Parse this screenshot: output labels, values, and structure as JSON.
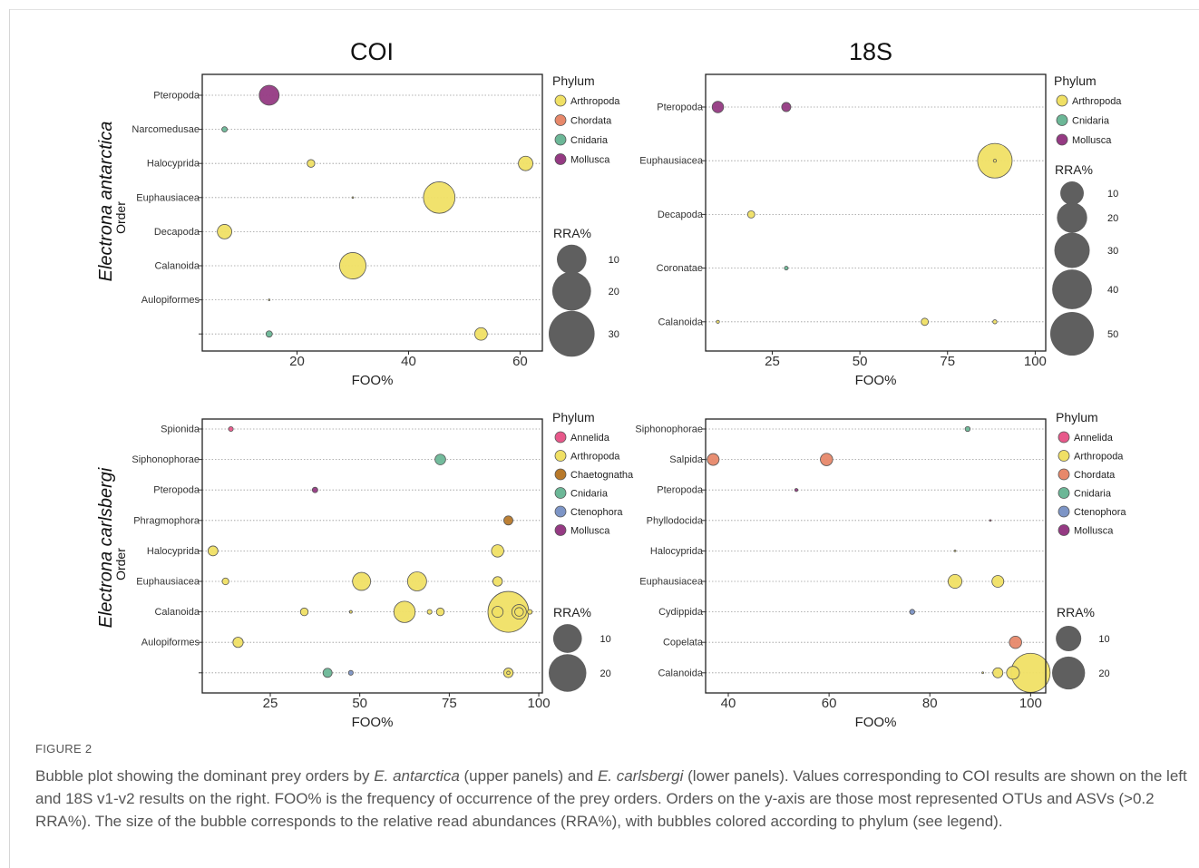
{
  "colors": {
    "Annelida": "#e7588a",
    "Arthropoda": "#f0e065",
    "Chaetognatha": "#b8792a",
    "Chordata": "#e7886a",
    "Cnidaria": "#6cb797",
    "Ctenophora": "#7d95c6",
    "Mollusca": "#953a83"
  },
  "columns": [
    "COI",
    "18S"
  ],
  "row_labels": [
    "Electrona antarctica",
    "Electrona carlsbergi"
  ],
  "order_label": "Order",
  "legend_phylum_title": "Phylum",
  "legend_rra_title": "RRA%",
  "chart_data": [
    {
      "id": "ant_coi",
      "type": "scatter",
      "xlabel": "FOO%",
      "ylabel": "Order",
      "xlim": [
        3,
        64
      ],
      "xticks": [
        20,
        40,
        60
      ],
      "categories": [
        "Pteropoda",
        "Narcomedusae",
        "Halocyprida",
        "Euphausiacea",
        "Decapoda",
        "Calanoida",
        "Aulopiformes",
        ""
      ],
      "size_max_rra": 35,
      "size_max_r": 23,
      "phyla": [
        "Arthropoda",
        "Chordata",
        "Cnidaria",
        "Mollusca"
      ],
      "rra_legend": [
        10,
        20,
        30
      ],
      "points": [
        {
          "order": "Pteropoda",
          "foo": 15,
          "rra": 8,
          "phylum": "Mollusca"
        },
        {
          "order": "Narcomedusae",
          "foo": 7,
          "rra": 0.6,
          "phylum": "Cnidaria"
        },
        {
          "order": "Halocyprida",
          "foo": 22.5,
          "rra": 1.2,
          "phylum": "Arthropoda"
        },
        {
          "order": "Halocyprida",
          "foo": 61,
          "rra": 4.2,
          "phylum": "Arthropoda"
        },
        {
          "order": "Euphausiacea",
          "foo": 30,
          "rra": 0.05,
          "phylum": "Arthropoda"
        },
        {
          "order": "Euphausiacea",
          "foo": 45.5,
          "rra": 20,
          "phylum": "Arthropoda"
        },
        {
          "order": "Decapoda",
          "foo": 7,
          "rra": 4.2,
          "phylum": "Arthropoda"
        },
        {
          "order": "Calanoida",
          "foo": 30,
          "rra": 14,
          "phylum": "Arthropoda"
        },
        {
          "order": "Aulopiformes",
          "foo": 15,
          "rra": 0.05,
          "phylum": "Arthropoda"
        },
        {
          "order": "",
          "foo": 15,
          "rra": 0.8,
          "phylum": "Cnidaria"
        },
        {
          "order": "",
          "foo": 53,
          "rra": 3.2,
          "phylum": "Arthropoda"
        }
      ]
    },
    {
      "id": "ant_18s",
      "type": "scatter",
      "xlabel": "FOO%",
      "ylabel": "",
      "xlim": [
        6,
        103
      ],
      "xticks": [
        25,
        50,
        75,
        100
      ],
      "categories": [
        "Pteropoda",
        "Euphausiacea",
        "Decapoda",
        "Coronatae",
        "Calanoida"
      ],
      "size_max_rra": 55,
      "size_max_r": 20,
      "phyla": [
        "Arthropoda",
        "Cnidaria",
        "Mollusca"
      ],
      "rra_legend": [
        10,
        20,
        30,
        40,
        50
      ],
      "points": [
        {
          "order": "Pteropoda",
          "foo": 9.5,
          "rra": 5.5,
          "phylum": "Mollusca"
        },
        {
          "order": "Pteropoda",
          "foo": 29,
          "rra": 3.5,
          "phylum": "Mollusca"
        },
        {
          "order": "Euphausiacea",
          "foo": 88.5,
          "rra": 50,
          "phylum": "Arthropoda"
        },
        {
          "order": "Euphausiacea",
          "foo": 88.5,
          "rra": 0.4,
          "phylum": "Arthropoda"
        },
        {
          "order": "Decapoda",
          "foo": 19,
          "rra": 2.2,
          "phylum": "Arthropoda"
        },
        {
          "order": "Coronatae",
          "foo": 29,
          "rra": 0.6,
          "phylum": "Cnidaria"
        },
        {
          "order": "Calanoida",
          "foo": 9.5,
          "rra": 0.4,
          "phylum": "Arthropoda"
        },
        {
          "order": "Calanoida",
          "foo": 68.5,
          "rra": 2.2,
          "phylum": "Arthropoda"
        },
        {
          "order": "Calanoida",
          "foo": 88.5,
          "rra": 0.7,
          "phylum": "Arthropoda"
        }
      ]
    },
    {
      "id": "car_coi",
      "type": "scatter",
      "xlabel": "FOO%",
      "ylabel": "Order",
      "xlim": [
        6,
        101
      ],
      "xticks": [
        25,
        50,
        75,
        100
      ],
      "categories": [
        "Spionida",
        "Siphonophorae",
        "Pteropoda",
        "Phragmophora",
        "Halocyprida",
        "Euphausiacea",
        "Calanoida",
        "Aulopiformes",
        ""
      ],
      "size_max_rra": 25,
      "size_max_r": 24,
      "phyla": [
        "Annelida",
        "Arthropoda",
        "Chaetognatha",
        "Cnidaria",
        "Ctenophora",
        "Mollusca"
      ],
      "rra_legend": [
        10,
        20
      ],
      "points": [
        {
          "order": "Spionida",
          "foo": 14,
          "rra": 0.3,
          "phylum": "Annelida"
        },
        {
          "order": "Siphonophorae",
          "foo": 72.5,
          "rra": 1.5,
          "phylum": "Cnidaria"
        },
        {
          "order": "Pteropoda",
          "foo": 37.5,
          "rra": 0.4,
          "phylum": "Mollusca"
        },
        {
          "order": "Phragmophora",
          "foo": 91.5,
          "rra": 1.1,
          "phylum": "Chaetognatha"
        },
        {
          "order": "Halocyprida",
          "foo": 9,
          "rra": 1.3,
          "phylum": "Arthropoda"
        },
        {
          "order": "Halocyprida",
          "foo": 88.5,
          "rra": 2.0,
          "phylum": "Arthropoda"
        },
        {
          "order": "Euphausiacea",
          "foo": 12.5,
          "rra": 0.6,
          "phylum": "Arthropoda"
        },
        {
          "order": "Euphausiacea",
          "foo": 50.5,
          "rra": 4.3,
          "phylum": "Arthropoda"
        },
        {
          "order": "Euphausiacea",
          "foo": 66,
          "rra": 4.8,
          "phylum": "Arthropoda"
        },
        {
          "order": "Euphausiacea",
          "foo": 88.5,
          "rra": 1.2,
          "phylum": "Arthropoda"
        },
        {
          "order": "Calanoida",
          "foo": 34.5,
          "rra": 0.8,
          "phylum": "Arthropoda"
        },
        {
          "order": "Calanoida",
          "foo": 47.5,
          "rra": 0.1,
          "phylum": "Arthropoda"
        },
        {
          "order": "Calanoida",
          "foo": 62.5,
          "rra": 6.0,
          "phylum": "Arthropoda"
        },
        {
          "order": "Calanoida",
          "foo": 69.5,
          "rra": 0.3,
          "phylum": "Arthropoda"
        },
        {
          "order": "Calanoida",
          "foo": 72.5,
          "rra": 0.8,
          "phylum": "Arthropoda"
        },
        {
          "order": "Calanoida",
          "foo": 91.5,
          "rra": 22,
          "phylum": "Arthropoda"
        },
        {
          "order": "Calanoida",
          "foo": 88.5,
          "rra": 1.6,
          "phylum": "Arthropoda"
        },
        {
          "order": "Calanoida",
          "foo": 94.5,
          "rra": 2.8,
          "phylum": "Arthropoda"
        },
        {
          "order": "Calanoida",
          "foo": 94.5,
          "rra": 1.0,
          "phylum": "Arthropoda"
        },
        {
          "order": "Calanoida",
          "foo": 97.5,
          "rra": 0.3,
          "phylum": "Arthropoda"
        },
        {
          "order": "Aulopiformes",
          "foo": 16,
          "rra": 1.4,
          "phylum": "Arthropoda"
        },
        {
          "order": "",
          "foo": 41,
          "rra": 1.1,
          "phylum": "Cnidaria"
        },
        {
          "order": "",
          "foo": 47.5,
          "rra": 0.3,
          "phylum": "Ctenophora"
        },
        {
          "order": "",
          "foo": 91.5,
          "rra": 1.2,
          "phylum": "Arthropoda"
        },
        {
          "order": "",
          "foo": 91.5,
          "rra": 0.15,
          "phylum": "Arthropoda"
        }
      ]
    },
    {
      "id": "car_18s",
      "type": "scatter",
      "xlabel": "FOO%",
      "ylabel": "",
      "xlim": [
        35.5,
        103
      ],
      "xticks": [
        40,
        60,
        80,
        100
      ],
      "categories": [
        "Siphonophorae",
        "Salpida",
        "Pteropoda",
        "Phyllodocida",
        "Halocyprida",
        "Euphausiacea",
        "Cydippida",
        "Copelata",
        "Calanoida"
      ],
      "size_max_rra": 25,
      "size_max_r": 22,
      "phyla": [
        "Annelida",
        "Arthropoda",
        "Chordata",
        "Cnidaria",
        "Ctenophora",
        "Mollusca"
      ],
      "rra_legend": [
        10,
        20
      ],
      "points": [
        {
          "order": "Siphonophorae",
          "foo": 87.5,
          "rra": 0.4,
          "phylum": "Cnidaria"
        },
        {
          "order": "Salpida",
          "foo": 37,
          "rra": 2.2,
          "phylum": "Chordata"
        },
        {
          "order": "Salpida",
          "foo": 59.5,
          "rra": 2.4,
          "phylum": "Chordata"
        },
        {
          "order": "Pteropoda",
          "foo": 53.5,
          "rra": 0.15,
          "phylum": "Mollusca"
        },
        {
          "order": "Phyllodocida",
          "foo": 92,
          "rra": 0.02,
          "phylum": "Annelida"
        },
        {
          "order": "Halocyprida",
          "foo": 85,
          "rra": 0.05,
          "phylum": "Arthropoda"
        },
        {
          "order": "Euphausiacea",
          "foo": 85,
          "rra": 3.0,
          "phylum": "Arthropoda"
        },
        {
          "order": "Euphausiacea",
          "foo": 93.5,
          "rra": 2.2,
          "phylum": "Arthropoda"
        },
        {
          "order": "Cydippida",
          "foo": 76.5,
          "rra": 0.4,
          "phylum": "Ctenophora"
        },
        {
          "order": "Copelata",
          "foo": 97,
          "rra": 2.4,
          "phylum": "Chordata"
        },
        {
          "order": "Calanoida",
          "foo": 90.5,
          "rra": 0.05,
          "phylum": "Arthropoda"
        },
        {
          "order": "Calanoida",
          "foo": 93.5,
          "rra": 1.6,
          "phylum": "Arthropoda"
        },
        {
          "order": "Calanoida",
          "foo": 96.5,
          "rra": 2.6,
          "phylum": "Arthropoda"
        },
        {
          "order": "Calanoida",
          "foo": 100,
          "rra": 24,
          "phylum": "Arthropoda"
        }
      ]
    }
  ],
  "caption": {
    "label": "FIGURE 2",
    "parts": [
      "Bubble plot showing the dominant prey orders by ",
      "E. antarctica",
      " (upper panels) and ",
      "E. carlsbergi",
      " (lower panels). Values corresponding to COI results are shown on the left and 18S v1-v2 results on the right. FOO% is the frequency of occurrence of the prey orders. Orders on the y-axis are those most represented OTUs and ASVs (>0.2 RRA%). The size of the bubble corresponds to the relative read abundances (RRA%), with bubbles colored according to phylum (see legend)."
    ]
  }
}
